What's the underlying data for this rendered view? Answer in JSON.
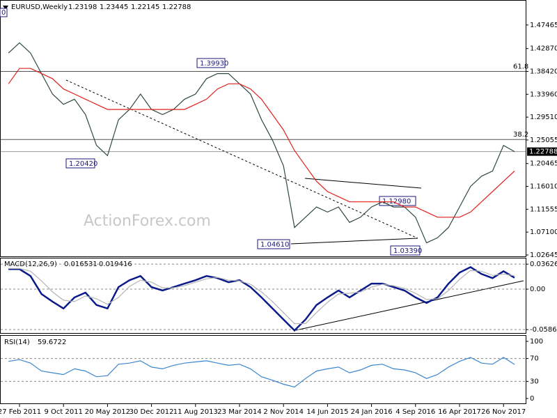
{
  "chart_data": [
    {
      "type": "line",
      "title": "EURUSD,Weekly",
      "ohlc": [
        1.23198,
        1.23445,
        1.22145,
        1.22788
      ],
      "last_price": 1.22788,
      "watermark": "ActionForex.com",
      "corner_label": "0",
      "categories": [
        null,
        "27 Feb 2011",
        null,
        null,
        null,
        "9 Oct 2011",
        null,
        null,
        null,
        "20 May 2012",
        null,
        null,
        null,
        "30 Dec 2012",
        null,
        null,
        null,
        "11 Aug 2013",
        null,
        null,
        null,
        "23 Mar 2014",
        null,
        null,
        null,
        "2 Nov 2014",
        null,
        null,
        null,
        "14 Jun 2015",
        null,
        null,
        null,
        "24 Jan 2016",
        null,
        null,
        null,
        "4 Sep 2016",
        null,
        null,
        null,
        "16 Apr 2017",
        null,
        null,
        null,
        "26 Nov 2017",
        null
      ],
      "series": [
        {
          "color": "#2e4a3a",
          "values": [
            1.42,
            1.44,
            1.42,
            1.38,
            1.34,
            1.32,
            1.33,
            1.3,
            1.24,
            1.22,
            1.29,
            1.31,
            1.34,
            1.31,
            1.3,
            1.31,
            1.33,
            1.34,
            1.37,
            1.38,
            1.38,
            1.36,
            1.34,
            1.29,
            1.25,
            1.2,
            1.08,
            1.1,
            1.12,
            1.11,
            1.12,
            1.09,
            1.1,
            1.12,
            1.13,
            1.12,
            1.12,
            1.1,
            1.05,
            1.06,
            1.08,
            1.12,
            1.16,
            1.18,
            1.19,
            1.24,
            1.22788
          ]
        },
        {
          "color": "#e0201b",
          "values": [
            1.36,
            1.39,
            1.39,
            1.38,
            1.37,
            1.35,
            1.34,
            1.33,
            1.32,
            1.31,
            1.31,
            1.31,
            1.31,
            1.31,
            1.31,
            1.31,
            1.31,
            1.32,
            1.33,
            1.35,
            1.36,
            1.36,
            1.35,
            1.33,
            1.3,
            1.27,
            1.23,
            1.2,
            1.17,
            1.15,
            1.14,
            1.13,
            1.13,
            1.13,
            1.13,
            1.13,
            1.12,
            1.12,
            1.11,
            1.1,
            1.1,
            1.1,
            1.11,
            1.13,
            1.15,
            1.17,
            1.19
          ]
        }
      ],
      "levels": [
        {
          "value": 1.3842,
          "label": "61.8"
        },
        {
          "value": 1.2515,
          "label": "38.2"
        }
      ],
      "annotations": [
        "1.39930",
        "1.20420",
        "1.04610",
        "1.03390",
        "1.12980"
      ],
      "ylim": [
        1.0237,
        1.522
      ],
      "yticks": [
        1.47465,
        {
          "value": 1.4287,
          "label": "1.42870"
        },
        {
          "value": 1.3842,
          "label": "1.38420"
        },
        {
          "value": 1.3396,
          "label": "1.33960"
        },
        {
          "value": 1.2951,
          "label": "1.29510"
        },
        1.25055,
        1.20465,
        {
          "value": 1.1601,
          "label": "1.16010"
        },
        1.11555,
        {
          "value": 1.071,
          "label": "1.07100"
        },
        1.02645
      ]
    },
    {
      "type": "line",
      "title": "MACD(12,26,9)",
      "series": [
        {
          "color": "#0a1a8a",
          "values": [
            0.029,
            0.029,
            0.019,
            -0.007,
            -0.018,
            -0.028,
            -0.012,
            -0.005,
            -0.023,
            -0.028,
            0.003,
            0.013,
            0.019,
            0.003,
            -0.002,
            0.003,
            0.008,
            0.013,
            0.019,
            0.016,
            0.01,
            0.013,
            0.003,
            -0.012,
            -0.028,
            -0.044,
            -0.06,
            -0.044,
            -0.023,
            -0.012,
            -0.002,
            -0.012,
            -0.002,
            0.008,
            0.008,
            0.003,
            -0.002,
            -0.012,
            -0.02,
            -0.012,
            0.008,
            0.024,
            0.032,
            0.022,
            0.016,
            0.026,
            0.016531
          ]
        },
        {
          "color": "#b4b4b4",
          "values": [
            0.03,
            0.03,
            0.026,
            0.012,
            -0.004,
            -0.016,
            -0.018,
            -0.01,
            -0.014,
            -0.022,
            -0.012,
            0.004,
            0.013,
            0.01,
            0.002,
            0.002,
            0.005,
            0.01,
            0.015,
            0.017,
            0.013,
            0.012,
            0.007,
            -0.004,
            -0.018,
            -0.034,
            -0.05,
            -0.05,
            -0.034,
            -0.019,
            -0.007,
            -0.006,
            -0.004,
            0.003,
            0.007,
            0.005,
            0.001,
            -0.006,
            -0.015,
            -0.014,
            -0.002,
            0.014,
            0.027,
            0.026,
            0.02,
            0.022,
            0.019416
          ]
        }
      ],
      "ylim": [
        -0.0636,
        0.0445
      ],
      "yticks": [
        0.036263,
        {
          "value": 0,
          "label": "0.00"
        },
        -0.058606
      ]
    },
    {
      "type": "line",
      "title": "RSI(14)",
      "series": [
        {
          "color": "#3a86d0",
          "values": [
            65,
            68,
            62,
            48,
            45,
            42,
            52,
            48,
            38,
            40,
            60,
            62,
            66,
            55,
            52,
            58,
            62,
            64,
            66,
            62,
            58,
            60,
            52,
            38,
            32,
            25,
            20,
            35,
            48,
            52,
            55,
            45,
            50,
            58,
            60,
            52,
            50,
            45,
            35,
            42,
            55,
            65,
            72,
            62,
            60,
            72,
            59.6722
          ]
        }
      ],
      "ylim": [
        -9.75,
        109.75
      ],
      "yticks": [
        100,
        70,
        30,
        0
      ]
    }
  ]
}
